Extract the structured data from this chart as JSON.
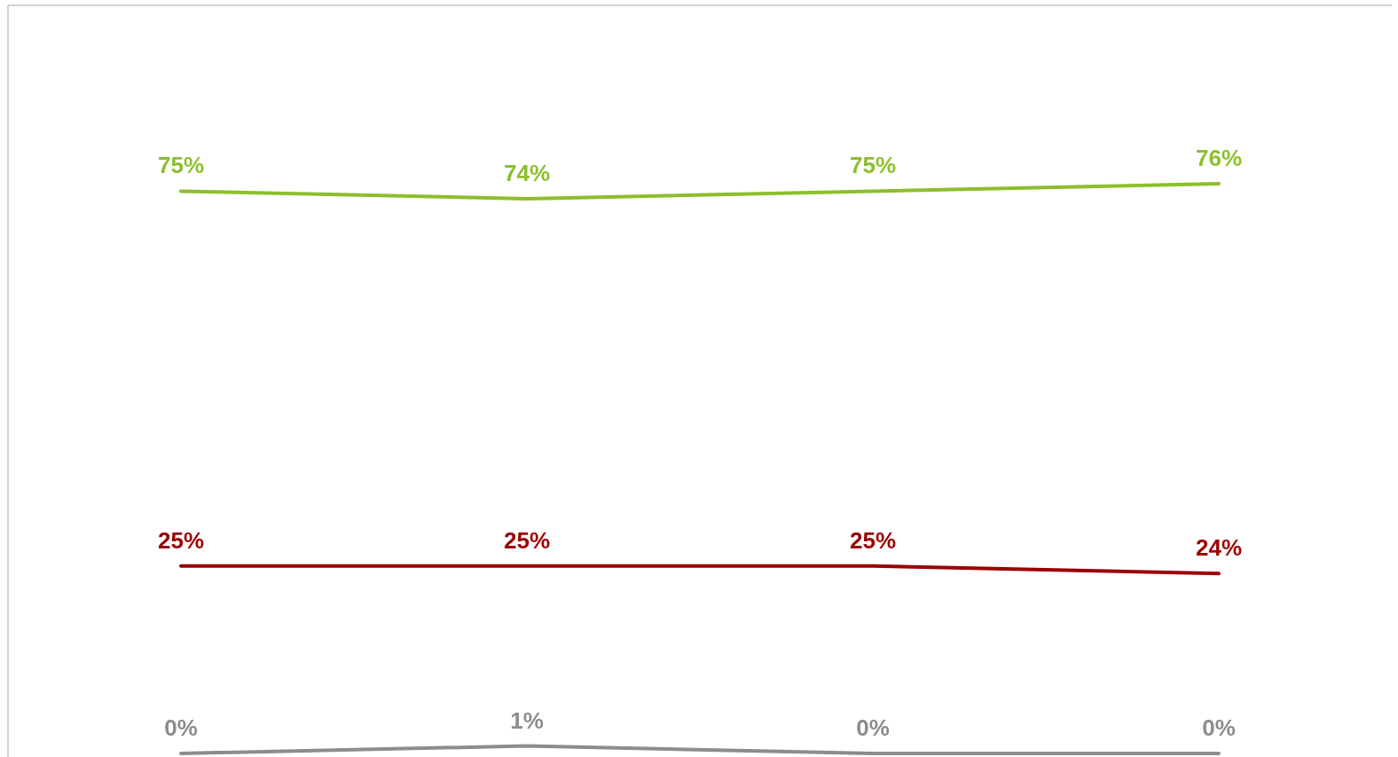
{
  "chart_data": {
    "type": "line",
    "categories": [
      null,
      null,
      null,
      null
    ],
    "series": [
      {
        "color": "#8cbf2c",
        "values": [
          75,
          74,
          75,
          76
        ],
        "value_labels": [
          "75%",
          "74%",
          "75%",
          "76%"
        ]
      },
      {
        "color": "#9b0000",
        "values": [
          25,
          25,
          25,
          24
        ],
        "value_labels": [
          "25%",
          "25%",
          "25%",
          "24%"
        ]
      },
      {
        "color": "#8c8c8c",
        "values": [
          0,
          1,
          0,
          0
        ],
        "value_labels": [
          "0%",
          "1%",
          "0%",
          "0%"
        ]
      }
    ],
    "marker": "none",
    "line_style": "solid"
  }
}
